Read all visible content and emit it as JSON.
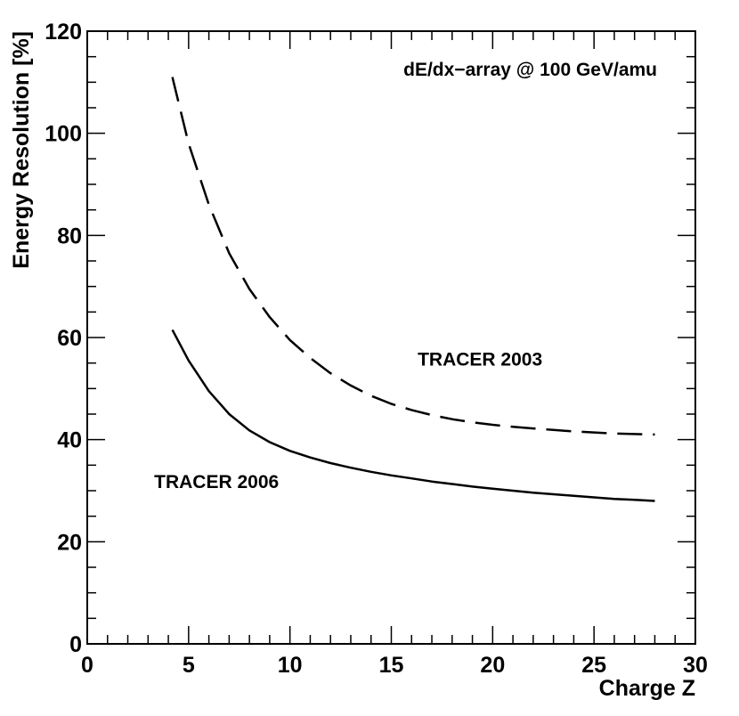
{
  "chart_data": {
    "type": "line",
    "title": "dE/dx−array @ 100 GeV/amu",
    "xlabel": "Charge Z",
    "ylabel": "Energy Resolution [%]",
    "xlim": [
      0,
      30
    ],
    "ylim": [
      0,
      120
    ],
    "x_ticks": [
      "0",
      "5",
      "10",
      "15",
      "20",
      "25",
      "30"
    ],
    "y_ticks": [
      "0",
      "20",
      "40",
      "60",
      "80",
      "100",
      "120"
    ],
    "grid": false,
    "legend": "none",
    "series": [
      {
        "name": "TRACER 2003",
        "style": "dashed",
        "x": [
          4.2,
          5,
          6,
          7,
          8,
          9,
          10,
          11,
          12,
          13,
          14,
          15,
          16,
          17,
          18,
          19,
          20,
          21,
          22,
          23,
          24,
          25,
          26,
          27,
          28
        ],
        "y": [
          111,
          98,
          86,
          76.5,
          69.5,
          64,
          59.5,
          56,
          53,
          50.6,
          48.6,
          47,
          45.8,
          44.8,
          44,
          43.4,
          42.9,
          42.5,
          42.2,
          41.9,
          41.6,
          41.4,
          41.2,
          41.1,
          41
        ]
      },
      {
        "name": "TRACER 2006",
        "style": "solid",
        "x": [
          4.2,
          5,
          6,
          7,
          8,
          9,
          10,
          11,
          12,
          13,
          14,
          15,
          16,
          17,
          18,
          19,
          20,
          21,
          22,
          23,
          24,
          25,
          26,
          27,
          28
        ],
        "y": [
          61.5,
          55.5,
          49.5,
          45,
          41.8,
          39.5,
          37.8,
          36.5,
          35.4,
          34.5,
          33.7,
          33,
          32.4,
          31.8,
          31.3,
          30.8,
          30.4,
          30,
          29.6,
          29.3,
          29,
          28.7,
          28.4,
          28.2,
          28
        ]
      }
    ],
    "annotations": [
      {
        "text": "TRACER 2003",
        "x": 16.3,
        "y": 54.5
      },
      {
        "text": "TRACER 2006",
        "x": 3.3,
        "y": 30.5
      }
    ]
  }
}
